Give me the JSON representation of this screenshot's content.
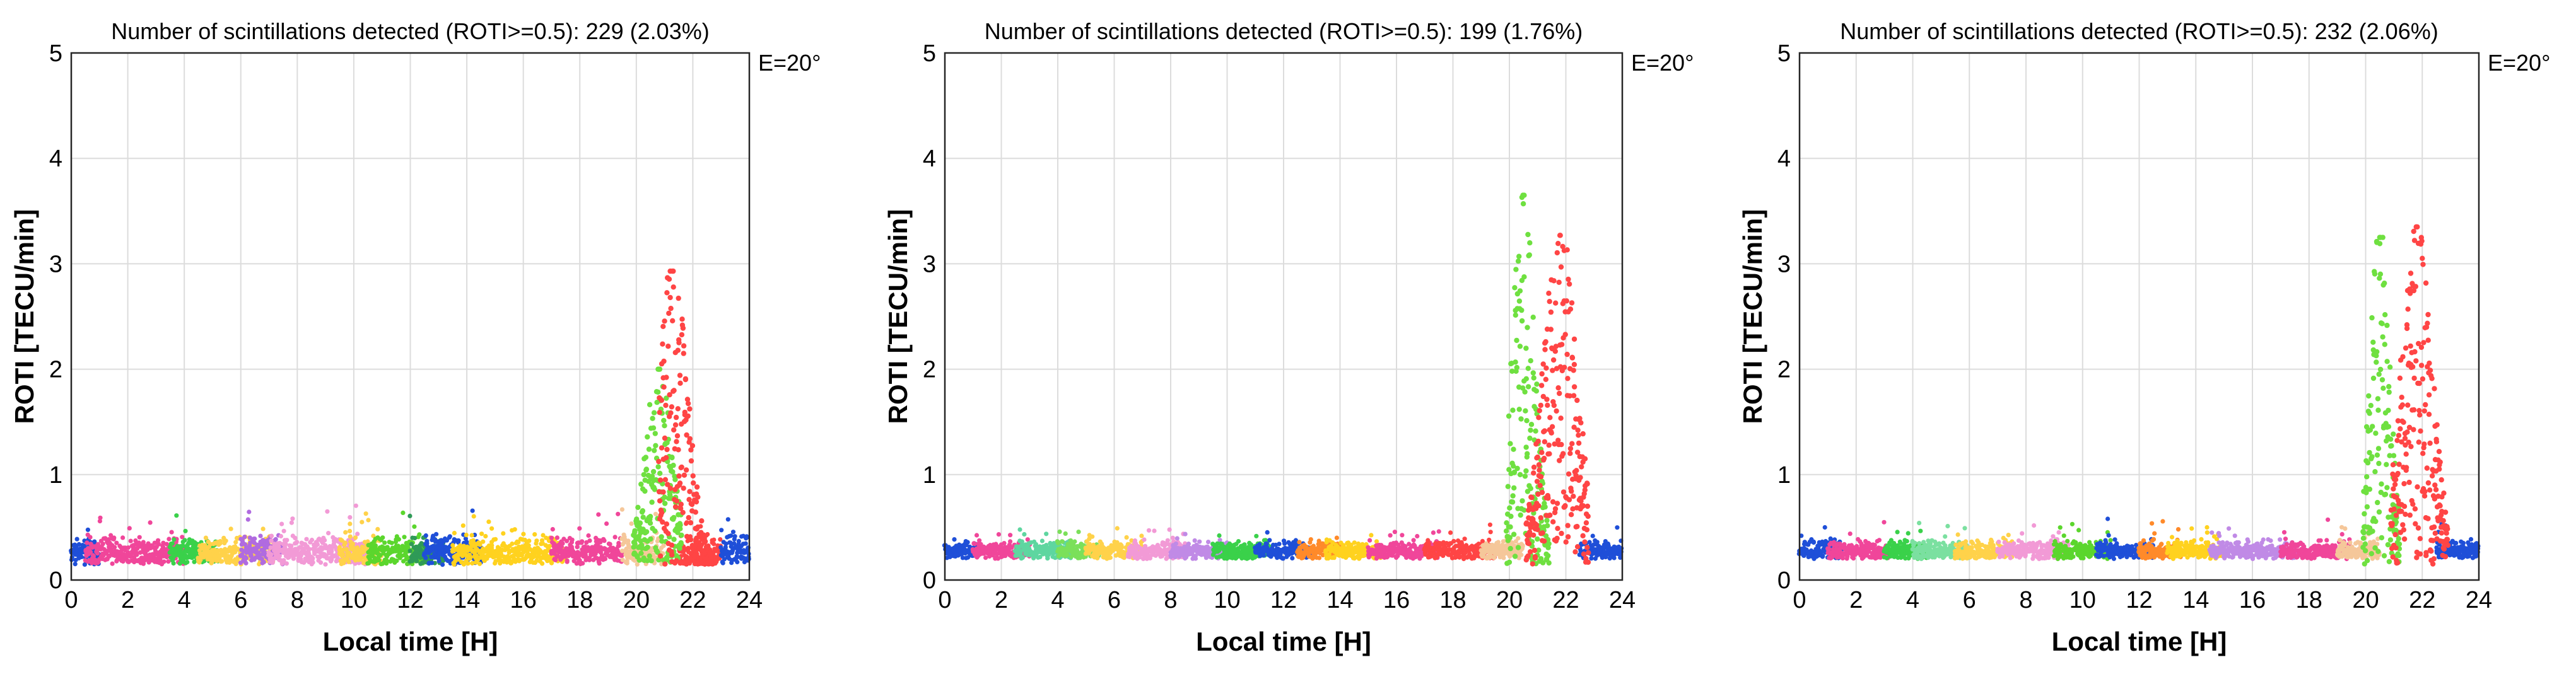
{
  "chart_data": [
    {
      "type": "scatter",
      "title": "Number of scintillations detected (ROTI>=0.5): 229 (2.03%)",
      "annotation": "E=20°",
      "xlabel": "Local time [H]",
      "ylabel": "ROTI [TECU/min]",
      "xlim": [
        0,
        24
      ],
      "ylim": [
        0,
        5
      ],
      "xticks": [
        "0",
        "2",
        "4",
        "6",
        "8",
        "10",
        "12",
        "14",
        "16",
        "18",
        "20",
        "22",
        "24"
      ],
      "yticks": [
        "0",
        "1",
        "2",
        "3",
        "4",
        "5"
      ],
      "grid": true,
      "baseline": {
        "typical": 0.22,
        "spread": 0.15,
        "max": 0.65
      },
      "segments": [
        {
          "start": 0.0,
          "end": 1.0,
          "color": "#1f4fd8"
        },
        {
          "start": 0.5,
          "end": 4.0,
          "color": "#f0469a"
        },
        {
          "start": 3.5,
          "end": 5.2,
          "color": "#3ad14a"
        },
        {
          "start": 4.5,
          "end": 7.2,
          "color": "#ffd24a"
        },
        {
          "start": 6.0,
          "end": 7.5,
          "color": "#b06be0"
        },
        {
          "start": 7.0,
          "end": 10.5,
          "color": "#f29ad6"
        },
        {
          "start": 9.5,
          "end": 11.0,
          "color": "#ffd24a"
        },
        {
          "start": 10.5,
          "end": 12.5,
          "color": "#5bd62d"
        },
        {
          "start": 12.0,
          "end": 13.2,
          "color": "#2f9a57"
        },
        {
          "start": 12.5,
          "end": 14.5,
          "color": "#1f4fd8"
        },
        {
          "start": 13.5,
          "end": 17.5,
          "color": "#ffd21f"
        },
        {
          "start": 17.0,
          "end": 19.5,
          "color": "#f0469a"
        },
        {
          "start": 19.5,
          "end": 21.0,
          "color": "#f5c79a"
        },
        {
          "start": 21.5,
          "end": 23.0,
          "color": "#ff4545"
        },
        {
          "start": 23.0,
          "end": 24.0,
          "color": "#1f4fd8"
        }
      ],
      "events": [
        {
          "start": 19.9,
          "end": 21.6,
          "peak_time": 20.8,
          "peak": 2.0,
          "color": "#6fe040"
        },
        {
          "start": 20.8,
          "end": 22.7,
          "peak_time": 21.3,
          "peak": 2.93,
          "color": "#ff4545"
        }
      ]
    },
    {
      "type": "scatter",
      "title": "Number of scintillations detected (ROTI>=0.5): 199 (1.76%)",
      "annotation": "E=20°",
      "xlabel": "Local time [H]",
      "ylabel": "ROTI [TECU/min]",
      "xlim": [
        0,
        24
      ],
      "ylim": [
        0,
        5
      ],
      "xticks": [
        "0",
        "2",
        "4",
        "6",
        "8",
        "10",
        "12",
        "14",
        "16",
        "18",
        "20",
        "22",
        "24"
      ],
      "yticks": [
        "0",
        "1",
        "2",
        "3",
        "4",
        "5"
      ],
      "grid": true,
      "baseline": {
        "typical": 0.25,
        "spread": 0.1,
        "max": 0.5
      },
      "segments": [
        {
          "start": 0.0,
          "end": 1.2,
          "color": "#1f4fd8"
        },
        {
          "start": 1.0,
          "end": 3.0,
          "color": "#f0469a"
        },
        {
          "start": 2.5,
          "end": 4.5,
          "color": "#5ed6a0"
        },
        {
          "start": 4.0,
          "end": 5.5,
          "color": "#7be05a"
        },
        {
          "start": 5.0,
          "end": 7.0,
          "color": "#ffd24a"
        },
        {
          "start": 6.5,
          "end": 8.5,
          "color": "#f29ad6"
        },
        {
          "start": 8.0,
          "end": 10.0,
          "color": "#c08ae6"
        },
        {
          "start": 9.5,
          "end": 11.5,
          "color": "#3ad14a"
        },
        {
          "start": 11.0,
          "end": 13.0,
          "color": "#1f4fd8"
        },
        {
          "start": 12.5,
          "end": 14.0,
          "color": "#ff8a2a"
        },
        {
          "start": 13.5,
          "end": 15.5,
          "color": "#ffd21f"
        },
        {
          "start": 15.0,
          "end": 17.5,
          "color": "#f0469a"
        },
        {
          "start": 17.0,
          "end": 19.5,
          "color": "#ff4545"
        },
        {
          "start": 19.0,
          "end": 20.5,
          "color": "#f5c79a"
        },
        {
          "start": 22.5,
          "end": 24.0,
          "color": "#1f4fd8"
        }
      ],
      "events": [
        {
          "start": 19.9,
          "end": 21.4,
          "peak_time": 20.5,
          "peak": 3.65,
          "color": "#6fe040"
        },
        {
          "start": 20.6,
          "end": 22.8,
          "peak_time": 21.8,
          "peak": 3.27,
          "color": "#ff4545"
        }
      ]
    },
    {
      "type": "scatter",
      "title": "Number of scintillations detected (ROTI>=0.5): 232 (2.06%)",
      "annotation": "E=20°",
      "xlabel": "Local time [H]",
      "ylabel": "ROTI [TECU/min]",
      "xlim": [
        0,
        24
      ],
      "ylim": [
        0,
        5
      ],
      "xticks": [
        "0",
        "2",
        "4",
        "6",
        "8",
        "10",
        "12",
        "14",
        "16",
        "18",
        "20",
        "22",
        "24"
      ],
      "yticks": [
        "0",
        "1",
        "2",
        "3",
        "4",
        "5"
      ],
      "grid": true,
      "baseline": {
        "typical": 0.24,
        "spread": 0.08,
        "max": 0.55
      },
      "segments": [
        {
          "start": 0.0,
          "end": 1.5,
          "color": "#1f4fd8"
        },
        {
          "start": 1.0,
          "end": 3.2,
          "color": "#f0469a"
        },
        {
          "start": 3.0,
          "end": 4.5,
          "color": "#3ad14a"
        },
        {
          "start": 4.0,
          "end": 6.0,
          "color": "#7be0a0"
        },
        {
          "start": 5.5,
          "end": 7.5,
          "color": "#ffd24a"
        },
        {
          "start": 7.0,
          "end": 9.5,
          "color": "#f29ad6"
        },
        {
          "start": 9.0,
          "end": 11.0,
          "color": "#5bd62d"
        },
        {
          "start": 10.5,
          "end": 12.5,
          "color": "#1f4fd8"
        },
        {
          "start": 12.0,
          "end": 13.5,
          "color": "#ff8a2a"
        },
        {
          "start": 13.0,
          "end": 15.0,
          "color": "#ffd21f"
        },
        {
          "start": 14.5,
          "end": 17.5,
          "color": "#c08ae6"
        },
        {
          "start": 17.0,
          "end": 19.5,
          "color": "#f0469a"
        },
        {
          "start": 19.0,
          "end": 20.5,
          "color": "#f5c79a"
        },
        {
          "start": 22.5,
          "end": 24.0,
          "color": "#1f4fd8"
        }
      ],
      "events": [
        {
          "start": 19.9,
          "end": 21.2,
          "peak_time": 20.5,
          "peak": 3.25,
          "color": "#6fe040"
        },
        {
          "start": 20.9,
          "end": 22.9,
          "peak_time": 21.8,
          "peak": 3.35,
          "color": "#ff4545"
        }
      ]
    }
  ]
}
